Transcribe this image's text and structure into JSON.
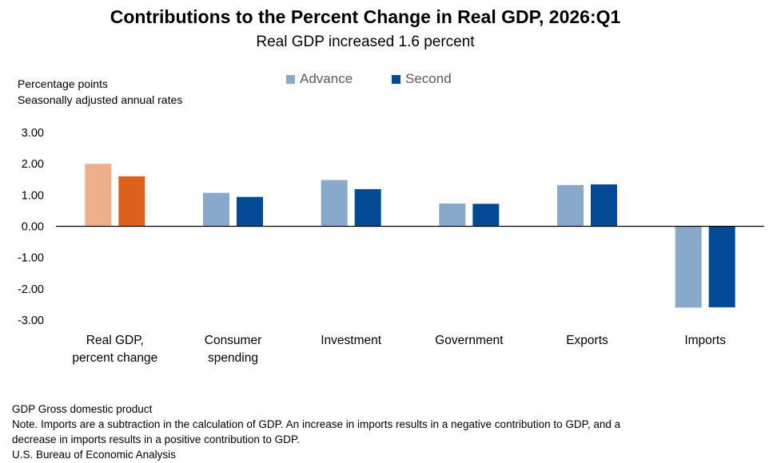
{
  "colors": {
    "advance_default": "#89a9cc",
    "second_default": "#034a96",
    "advance_highlight": "#eeb08c",
    "second_highlight": "#dc5f1c",
    "zero_line": "#000000",
    "tick_label": "#000000"
  },
  "footer": {
    "line1": "GDP Gross domestic product",
    "line2": "Note. Imports are a subtraction in the calculation of GDP. An increase in imports results in a negative contribution to GDP, and a",
    "line3": "decrease in imports results in a positive contribution to GDP.",
    "line4": "U.S. Bureau of Economic Analysis"
  },
  "chart_data": {
    "type": "bar",
    "title": "Contributions to the Percent Change in Real GDP, 2026:Q1",
    "subtitle": "Real GDP increased 1.6 percent",
    "ylabel": [
      "Percentage points",
      "Seasonally adjusted annual rates"
    ],
    "xlabel": "",
    "ylim": [
      -3.0,
      3.0
    ],
    "yticks": [
      "3.00",
      "2.00",
      "1.00",
      "0.00",
      "-1.00",
      "-2.00",
      "-3.00"
    ],
    "ytick_values": [
      3,
      2,
      1,
      0,
      -1,
      -2,
      -3
    ],
    "grid": false,
    "legend_position": "top-center",
    "categories": [
      [
        "Real GDP,",
        "percent change"
      ],
      [
        "Consumer",
        "spending"
      ],
      [
        "Investment"
      ],
      [
        "Government"
      ],
      [
        "Exports"
      ],
      [
        "Imports"
      ]
    ],
    "highlight_category_index": 0,
    "series": [
      {
        "name": "Advance",
        "values": [
          2.0,
          1.07,
          1.48,
          0.73,
          1.32,
          -2.6
        ]
      },
      {
        "name": "Second",
        "values": [
          1.6,
          0.94,
          1.19,
          0.72,
          1.34,
          -2.59
        ]
      }
    ]
  }
}
